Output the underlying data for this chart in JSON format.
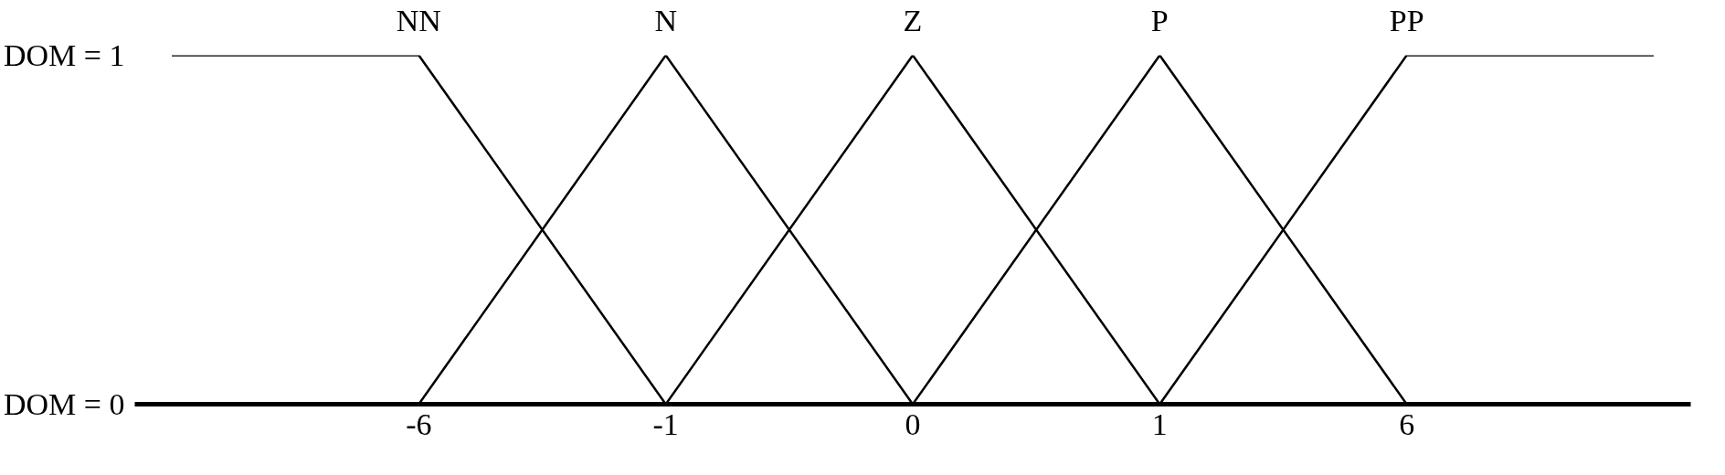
{
  "chart_data": {
    "type": "line",
    "categories": [
      null,
      "-6",
      "-1",
      "0",
      "1",
      "6",
      null
    ],
    "series": [
      {
        "name": "NN",
        "color": "#000000",
        "values": [
          1,
          1,
          0,
          null,
          null,
          null,
          null
        ]
      },
      {
        "name": "N",
        "color": "#000000",
        "values": [
          null,
          0,
          1,
          0,
          null,
          null,
          null
        ]
      },
      {
        "name": "Z",
        "color": "#000000",
        "values": [
          null,
          null,
          0,
          1,
          0,
          null,
          null
        ]
      },
      {
        "name": "P",
        "color": "#000000",
        "values": [
          null,
          null,
          null,
          0,
          1,
          0,
          null
        ]
      },
      {
        "name": "PP",
        "color": "#000000",
        "values": [
          null,
          null,
          null,
          null,
          0,
          1,
          1
        ]
      }
    ],
    "ylim": [
      0,
      1
    ],
    "yticks": [
      {
        "value": 0,
        "label": "DOM = 0"
      },
      {
        "value": 1,
        "label": "DOM = 1"
      }
    ],
    "grid": false,
    "marker": "none",
    "line_style": "solid"
  }
}
